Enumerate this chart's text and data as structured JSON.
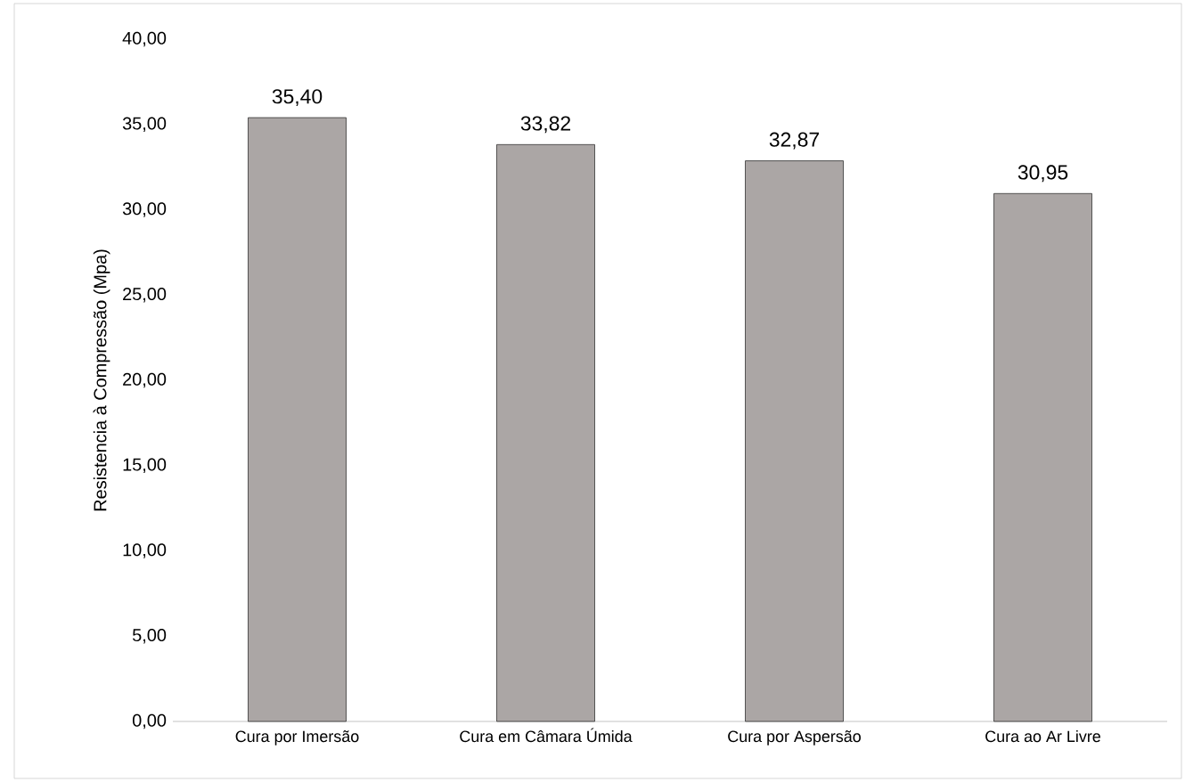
{
  "chart_data": {
    "type": "bar",
    "ylabel": "Resistencia à Compressão (Mpa)",
    "categories": [
      "Cura por Imersão",
      "Cura em Câmara Úmida",
      "Cura por Aspersão",
      "Cura ao Ar Livre"
    ],
    "values": [
      35.4,
      33.82,
      32.87,
      30.95
    ],
    "value_labels": [
      "35,40",
      "33,82",
      "32,87",
      "30,95"
    ],
    "color": "#aba6a5",
    "ylim": [
      0,
      40
    ],
    "yticks": [
      {
        "value": 0,
        "label": "0,00"
      },
      {
        "value": 5,
        "label": "5,00"
      },
      {
        "value": 10,
        "label": "10,00"
      },
      {
        "value": 15,
        "label": "15,00"
      },
      {
        "value": 20,
        "label": "20,00"
      },
      {
        "value": 25,
        "label": "25,00"
      },
      {
        "value": 30,
        "label": "30,00"
      },
      {
        "value": 35,
        "label": "35,00"
      },
      {
        "value": 40,
        "label": "40,00"
      }
    ]
  }
}
